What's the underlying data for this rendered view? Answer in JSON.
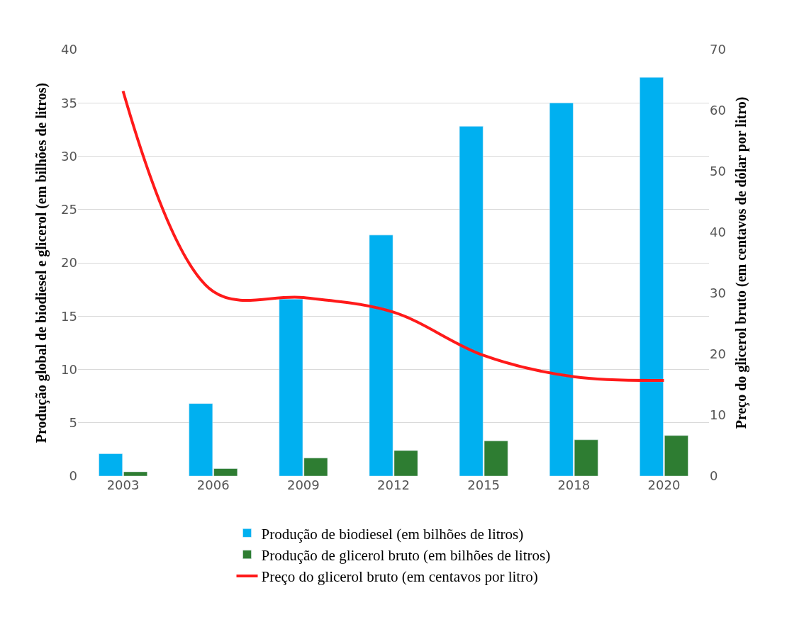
{
  "chart_data": {
    "type": "bar",
    "categories": [
      "2003",
      "2006",
      "2009",
      "2012",
      "2015",
      "2018",
      "2020"
    ],
    "ylabel": "Produção global de biodiesel e glicerol (em bilhões de litros)",
    "y2label": "Preço do glicerol bruto (em centavos de dólar por litro)",
    "series": [
      {
        "name": "Produção de biodiesel (em bilhões de litros)",
        "color": "#00b0f0",
        "values": [
          2.1,
          6.8,
          16.6,
          22.6,
          32.8,
          35.0,
          37.4
        ]
      },
      {
        "name": "Produção de glicerol bruto (em bilhões de litros)",
        "color": "#2e7d32",
        "values": [
          0.4,
          0.7,
          1.7,
          2.4,
          3.3,
          3.4,
          3.8
        ]
      },
      {
        "name": "Preço do glicerol bruto (em centavos por litro)",
        "type": "line",
        "axis": "y2",
        "color": "#ff1a1a",
        "marker": "none",
        "line_style": "solid",
        "values": [
          63.2,
          30.3,
          29.3,
          26.9,
          19.8,
          16.3,
          15.7
        ]
      }
    ],
    "ylim": [
      0,
      40
    ],
    "yticks": [
      0,
      5,
      10,
      15,
      20,
      25,
      30,
      35,
      40
    ],
    "y2lim": [
      0,
      70
    ],
    "y2ticks": [
      0,
      10,
      20,
      30,
      40,
      50,
      60,
      70
    ],
    "grid": "y",
    "legend": "bottom"
  }
}
